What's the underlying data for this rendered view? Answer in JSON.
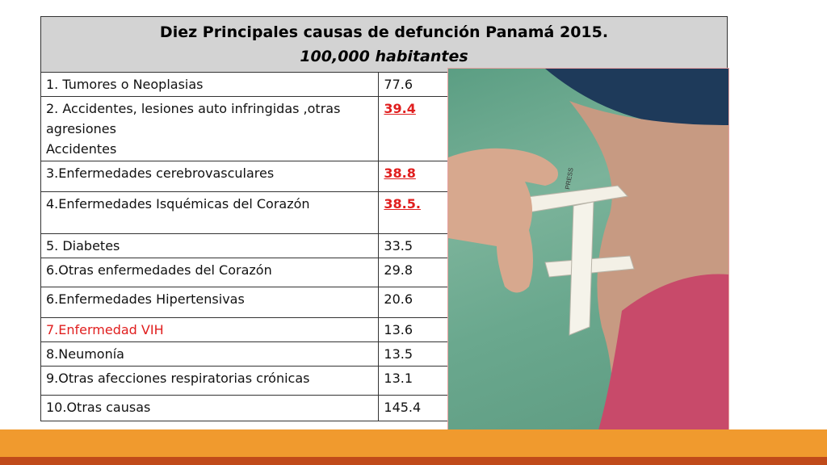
{
  "title": {
    "line1": "Diez Principales causas de defunción Panamá 2015.",
    "line2": "100,000 habitantes"
  },
  "rows": [
    {
      "cause": [
        "1. Tumores o Neoplasias"
      ],
      "rate": "77.6"
    },
    {
      "cause": [
        "2. Accidentes, lesiones auto infringidas ,otras",
        "agresiones",
        "Accidentes"
      ],
      "rate": "39.4"
    },
    {
      "cause": [
        "3.Enfermedades cerebrovasculares"
      ],
      "rate": "38.8"
    },
    {
      "cause": [
        "4.Enfermedades Isquémicas del Corazón"
      ],
      "rate": "38.5."
    },
    {
      "cause": [
        "5. Diabetes"
      ],
      "rate": "33.5"
    },
    {
      "cause": [
        "6.Otras enfermedades del Corazón"
      ],
      "rate": "29.8"
    },
    {
      "cause": [
        "6.Enfermedades  Hipertensivas"
      ],
      "rate": "20.6"
    },
    {
      "cause": [
        "7.Enfermedad VIH"
      ],
      "rate": "13.6"
    },
    {
      "cause": [
        "8.Neumonía"
      ],
      "rate": "13.5"
    },
    {
      "cause": [
        "9.Otras afecciones respiratorias crónicas"
      ],
      "rate": "13.1"
    },
    {
      "cause": [
        "10.Otras causas"
      ],
      "rate": "145.4"
    }
  ],
  "photo_caliper_text": "PRESS",
  "colors": {
    "header_bg": "#d3d3d3",
    "highlight_red": "#e01e1e",
    "photo_bg": "#6aa88e",
    "stripe_orange": "#f09a2e",
    "stripe_dark": "#c04a1a"
  }
}
